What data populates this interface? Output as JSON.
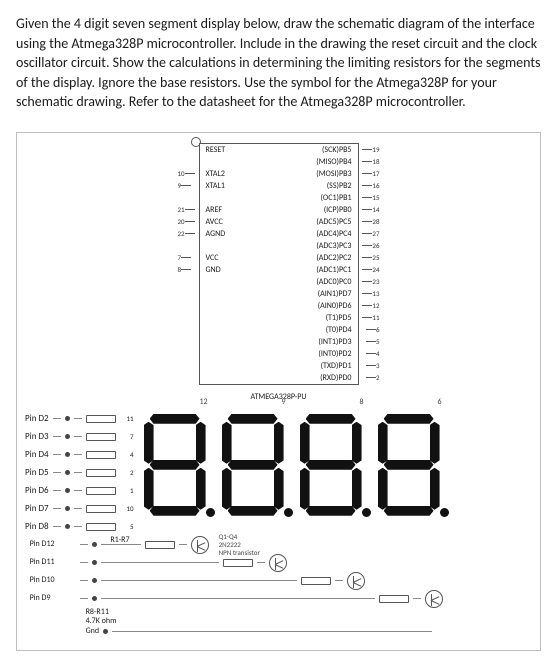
{
  "question": "Given the 4 digit seven segment display below, draw the schematic diagram of the interface using the Atmega328P microcontroller.  Include in the drawing the reset circuit and the clock oscillator circuit. Show the calculations in determining the limiting resistors for the segments of the display.  Ignore the base resistors. Use the symbol for the Atmega328P for your schematic drawing.  Refer to the datasheet for the Atmega328P microcontroller.",
  "mcu": {
    "left_rows": [
      {
        "pin": "",
        "lbl": "RESET"
      },
      {
        "pin": "10",
        "lbl": "XTAL2"
      },
      {
        "pin": "9",
        "lbl": "XTAL1"
      },
      {
        "pin": "21",
        "lbl": "AREF"
      },
      {
        "pin": "20",
        "lbl": "AVCC"
      },
      {
        "pin": "22",
        "lbl": "AGND"
      },
      {
        "pin": "7",
        "lbl": "VCC"
      },
      {
        "pin": "8",
        "lbl": "GND"
      }
    ],
    "right_rows": [
      {
        "lbl": "(SCK)PB5",
        "pin": "19"
      },
      {
        "lbl": "(MISO)PB4",
        "pin": "18"
      },
      {
        "lbl": "(MOSI)PB3",
        "pin": "17"
      },
      {
        "lbl": "(SS)PB2",
        "pin": "16"
      },
      {
        "lbl": "(OC1)PB1",
        "pin": "15"
      },
      {
        "lbl": "(ICP)PB0",
        "pin": "14"
      },
      {
        "lbl": "(ADC5)PC5",
        "pin": "28"
      },
      {
        "lbl": "(ADC4)PC4",
        "pin": "27"
      },
      {
        "lbl": "(ADC3)PC3",
        "pin": "26"
      },
      {
        "lbl": "(ADC2)PC2",
        "pin": "25"
      },
      {
        "lbl": "(ADC1)PC1",
        "pin": "24"
      },
      {
        "lbl": "(ADC0)PC0",
        "pin": "23"
      },
      {
        "lbl": "(AIN1)PD7",
        "pin": "13"
      },
      {
        "lbl": "(AIN0)PD6",
        "pin": "12"
      },
      {
        "lbl": "(T1)PD5",
        "pin": "11"
      },
      {
        "lbl": "(T0)PD4",
        "pin": "6"
      },
      {
        "lbl": "(INT1)PD3",
        "pin": "5"
      },
      {
        "lbl": "(INT0)PD2",
        "pin": "4"
      },
      {
        "lbl": "(TXD)PD1",
        "pin": "3"
      },
      {
        "lbl": "(RXD)PD0",
        "pin": "2"
      }
    ],
    "name": "ATMEGA328P-PU"
  },
  "segment_pins": [
    {
      "label": "Pin D2",
      "num": "11"
    },
    {
      "label": "Pin D3",
      "num": "7"
    },
    {
      "label": "Pin D4",
      "num": "4"
    },
    {
      "label": "Pin D5",
      "num": "2"
    },
    {
      "label": "Pin D6",
      "num": "1"
    },
    {
      "label": "Pin D7",
      "num": "10"
    },
    {
      "label": "Pin D8",
      "num": "5"
    }
  ],
  "res_group_label": "R1-R7",
  "digit_pins": [
    {
      "label": "Pin D12",
      "dnum": "12"
    },
    {
      "label": "Pin D11",
      "dnum": "9"
    },
    {
      "label": "Pin D10",
      "dnum": "8"
    },
    {
      "label": "Pin D9",
      "dnum": "6"
    }
  ],
  "trans_label_1": "Q1-Q4",
  "trans_label_2": "2N2222",
  "trans_label_3": "NPN transistor",
  "res_digit_label": "R8-R11",
  "res_digit_value": "4.7K ohm",
  "gnd_label": "Gnd",
  "digit_nums": [
    "12",
    "9",
    "8",
    "6"
  ],
  "colors": {
    "text": "#1a1a1a",
    "border": "#555555",
    "wire": "#9a9a9a"
  }
}
